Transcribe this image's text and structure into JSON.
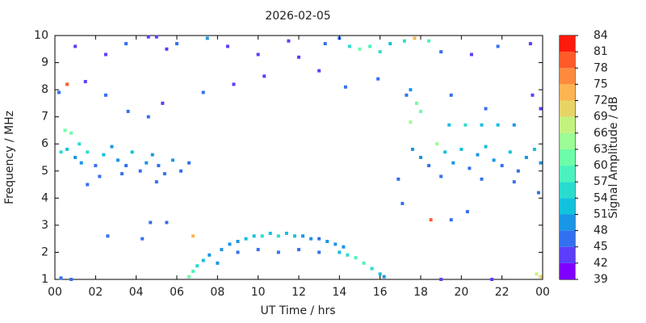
{
  "chart_data": {
    "type": "heatmap",
    "title": "2026-02-05",
    "x_label": "UT Time / hrs",
    "y_label": "Frequency / MHz",
    "colorbar_label": "Signal Amplitude / dB",
    "xlim": [
      0,
      24
    ],
    "ylim": [
      1,
      10
    ],
    "xticks": [
      {
        "value": 0,
        "label": "00"
      },
      {
        "value": 2,
        "label": "02"
      },
      {
        "value": 4,
        "label": "04"
      },
      {
        "value": 6,
        "label": "06"
      },
      {
        "value": 8,
        "label": "08"
      },
      10,
      12,
      14,
      16,
      18,
      20,
      22,
      {
        "value": 24,
        "label": "00"
      }
    ],
    "yticks": [
      1,
      2,
      3,
      4,
      5,
      6,
      7,
      8,
      9,
      10
    ],
    "colorbar": {
      "levels": [
        39,
        42,
        45,
        48,
        51,
        54,
        57,
        60,
        63,
        66,
        69,
        72,
        75,
        78,
        81,
        84
      ],
      "colors": [
        "#8000ff",
        "#5b3dfa",
        "#3370f0",
        "#1996e6",
        "#12c1dc",
        "#2adcce",
        "#4cf2bd",
        "#6dfca8",
        "#9cfc95",
        "#c4f27f",
        "#e6d467",
        "#fcb452",
        "#ff8a3e",
        "#ff5a29",
        "#ff1a0d"
      ]
    },
    "x": [
      0.3,
      0.6,
      1.0,
      1.3,
      1.6,
      2.0,
      2.4,
      2.8,
      3.1,
      3.5,
      3.8,
      4.2,
      4.5,
      4.8,
      5.1,
      5.4,
      5.8,
      6.2,
      6.6,
      0.5,
      0.8,
      1.2,
      2.2,
      3.3,
      5.0,
      17.6,
      18.0,
      18.4,
      18.8,
      19.2,
      19.6,
      20.0,
      20.4,
      20.8,
      21.2,
      21.6,
      22.0,
      22.4,
      22.8,
      23.2,
      23.6,
      23.9,
      19.0,
      21.0,
      22.6,
      19.4,
      20.2,
      21.0,
      21.8,
      22.6,
      17.5,
      18.0,
      1.0,
      2.5,
      3.5,
      4.6,
      5.0,
      5.5,
      6.0,
      7.5,
      8.5,
      10.0,
      11.5,
      13.3,
      14.0,
      14.5,
      15.0,
      15.5,
      16.0,
      16.5,
      17.2,
      17.7,
      18.4,
      19.0,
      20.5,
      21.8,
      23.4,
      12.0,
      0.2,
      1.5,
      2.5,
      3.6,
      4.6,
      5.3,
      7.3,
      8.8,
      17.3,
      17.5,
      17.8,
      19.5,
      21.2,
      23.5,
      0.6,
      14.3,
      10.3,
      13.0,
      15.9,
      23.9,
      8.2,
      8.6,
      9.0,
      9.4,
      9.8,
      10.2,
      10.6,
      11.0,
      11.4,
      11.8,
      12.2,
      12.6,
      13.0,
      13.4,
      13.8,
      14.2,
      10.0,
      11.0,
      12.0,
      13.0,
      9.0,
      6.6,
      6.8,
      7.0,
      7.3,
      7.6,
      8.0,
      14.0,
      14.4,
      14.8,
      15.2,
      15.6,
      16.0,
      16.2,
      23.7,
      23.9,
      0.3,
      0.8,
      19.0,
      21.5,
      6.8,
      4.7,
      5.5,
      1.6,
      17.1,
      18.5,
      19.5,
      20.3,
      23.8,
      16.9,
      2.6,
      4.3
    ],
    "y": [
      5.7,
      5.8,
      5.5,
      5.3,
      5.7,
      5.2,
      5.6,
      5.9,
      5.4,
      5.2,
      5.7,
      5.0,
      5.3,
      5.6,
      5.2,
      4.9,
      5.4,
      5.0,
      5.3,
      6.5,
      6.4,
      6.0,
      4.8,
      4.9,
      4.6,
      5.8,
      5.5,
      5.2,
      6.0,
      5.7,
      5.3,
      5.8,
      5.1,
      5.6,
      5.9,
      5.4,
      5.2,
      5.7,
      5.0,
      5.5,
      5.8,
      5.3,
      4.8,
      4.7,
      4.6,
      6.7,
      6.7,
      6.7,
      6.7,
      6.7,
      6.8,
      7.2,
      9.6,
      9.3,
      9.7,
      9.95,
      9.95,
      9.5,
      9.7,
      9.9,
      9.6,
      9.3,
      9.8,
      9.7,
      9.9,
      9.6,
      9.5,
      9.6,
      9.4,
      9.7,
      9.8,
      9.9,
      9.8,
      9.4,
      9.3,
      9.6,
      9.7,
      9.2,
      7.9,
      8.3,
      7.8,
      7.2,
      7.0,
      7.5,
      7.9,
      8.2,
      7.8,
      8.0,
      7.5,
      7.8,
      7.3,
      7.8,
      8.2,
      8.1,
      8.5,
      8.7,
      8.4,
      7.3,
      2.1,
      2.3,
      2.4,
      2.5,
      2.6,
      2.6,
      2.7,
      2.6,
      2.7,
      2.6,
      2.6,
      2.5,
      2.5,
      2.4,
      2.3,
      2.2,
      2.1,
      2.0,
      2.1,
      2.0,
      2.0,
      1.1,
      1.3,
      1.5,
      1.7,
      1.9,
      1.6,
      2.0,
      1.9,
      1.8,
      1.6,
      1.4,
      1.2,
      1.1,
      1.2,
      1.1,
      1.05,
      1.0,
      1.0,
      1.0,
      2.6,
      3.1,
      3.1,
      4.5,
      3.8,
      3.2,
      3.2,
      3.5,
      4.2,
      4.7,
      2.6,
      2.5
    ],
    "values": [
      54,
      52,
      50,
      48,
      55,
      47,
      52,
      50,
      49,
      46,
      53,
      47,
      48,
      50,
      47,
      46,
      48,
      47,
      45,
      62,
      60,
      54,
      46,
      47,
      45,
      50,
      48,
      47,
      64,
      52,
      48,
      53,
      46,
      50,
      51,
      48,
      47,
      52,
      46,
      49,
      51,
      48,
      46,
      45,
      47,
      52,
      54,
      53,
      52,
      50,
      64,
      60,
      44,
      42,
      45,
      42,
      43,
      42,
      47,
      50,
      44,
      42,
      44,
      45,
      47,
      55,
      60,
      58,
      56,
      52,
      55,
      72,
      57,
      45,
      44,
      45,
      44,
      43,
      45,
      44,
      46,
      46,
      45,
      44,
      45,
      43,
      45,
      48,
      62,
      46,
      45,
      44,
      78,
      45,
      44,
      43,
      45,
      44,
      48,
      50,
      50,
      52,
      53,
      55,
      53,
      54,
      52,
      51,
      50,
      49,
      47,
      48,
      49,
      50,
      47,
      46,
      46,
      47,
      46,
      60,
      58,
      56,
      52,
      50,
      49,
      52,
      55,
      57,
      58,
      55,
      52,
      50,
      66,
      70,
      46,
      45,
      44,
      43,
      72,
      46,
      45,
      45,
      46,
      78,
      46,
      45,
      46,
      45,
      47,
      46
    ]
  }
}
